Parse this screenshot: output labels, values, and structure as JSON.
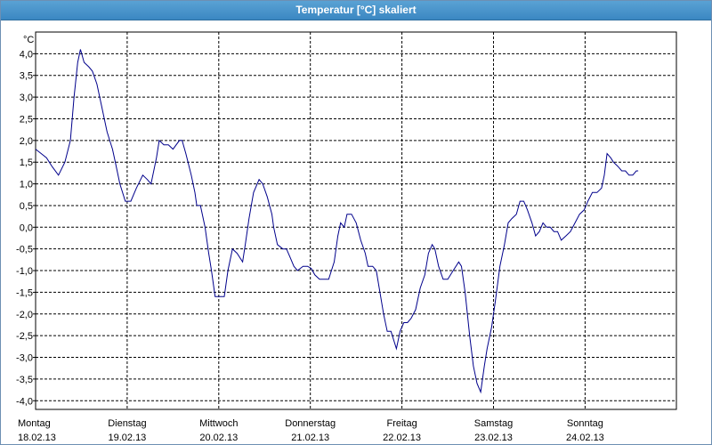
{
  "window": {
    "title": "Temperatur [°C] skaliert"
  },
  "chart_data": {
    "type": "line",
    "title": "Temperatur [°C] skaliert",
    "ylabel": "°C",
    "xlabel": "",
    "ylim": [
      -4.2,
      4.5
    ],
    "xlim": [
      0,
      7
    ],
    "grid": true,
    "y_ticks": [
      4.0,
      3.5,
      3.0,
      2.5,
      2.0,
      1.5,
      1.0,
      0.5,
      0.0,
      -0.5,
      -1.0,
      -1.5,
      -2.0,
      -2.5,
      -3.0,
      -3.5,
      -4.0
    ],
    "y_tick_labels": [
      "4,0",
      "3,5",
      "3,0",
      "2,5",
      "2,0",
      "1,5",
      "1,0",
      "0,5",
      "0,0",
      "-0,5",
      "-1,0",
      "-1,5",
      "-2,0",
      "-2,5",
      "-3,0",
      "-3,5",
      "-4,0"
    ],
    "x_days": [
      {
        "day": "Montag",
        "date": "18.02.13"
      },
      {
        "day": "Dienstag",
        "date": "19.02.13"
      },
      {
        "day": "Mittwoch",
        "date": "20.02.13"
      },
      {
        "day": "Donnerstag",
        "date": "21.02.13"
      },
      {
        "day": "Freitag",
        "date": "22.02.13"
      },
      {
        "day": "Samstag",
        "date": "23.02.13"
      },
      {
        "day": "Sonntag",
        "date": "24.02.13"
      }
    ],
    "series": [
      {
        "color": "#00008b",
        "points": [
          [
            0.0,
            1.8
          ],
          [
            0.06,
            1.7
          ],
          [
            0.12,
            1.6
          ],
          [
            0.18,
            1.4
          ],
          [
            0.25,
            1.2
          ],
          [
            0.32,
            1.5
          ],
          [
            0.38,
            2.0
          ],
          [
            0.42,
            3.0
          ],
          [
            0.46,
            3.8
          ],
          [
            0.49,
            4.1
          ],
          [
            0.53,
            3.8
          ],
          [
            0.58,
            3.7
          ],
          [
            0.62,
            3.6
          ],
          [
            0.67,
            3.3
          ],
          [
            0.72,
            2.8
          ],
          [
            0.78,
            2.2
          ],
          [
            0.84,
            1.8
          ],
          [
            0.88,
            1.4
          ],
          [
            0.92,
            1.0
          ],
          [
            0.98,
            0.6
          ],
          [
            1.04,
            0.6
          ],
          [
            1.1,
            0.9
          ],
          [
            1.17,
            1.2
          ],
          [
            1.22,
            1.1
          ],
          [
            1.26,
            1.0
          ],
          [
            1.32,
            1.6
          ],
          [
            1.35,
            2.0
          ],
          [
            1.4,
            1.9
          ],
          [
            1.45,
            1.9
          ],
          [
            1.5,
            1.8
          ],
          [
            1.57,
            2.0
          ],
          [
            1.6,
            2.0
          ],
          [
            1.64,
            1.7
          ],
          [
            1.7,
            1.2
          ],
          [
            1.74,
            0.8
          ],
          [
            1.76,
            0.5
          ],
          [
            1.8,
            0.5
          ],
          [
            1.85,
            0.0
          ],
          [
            1.89,
            -0.6
          ],
          [
            1.92,
            -1.0
          ],
          [
            1.96,
            -1.6
          ],
          [
            2.0,
            -1.6
          ],
          [
            2.06,
            -1.6
          ],
          [
            2.1,
            -1.0
          ],
          [
            2.15,
            -0.5
          ],
          [
            2.2,
            -0.6
          ],
          [
            2.26,
            -0.8
          ],
          [
            2.29,
            -0.4
          ],
          [
            2.33,
            0.2
          ],
          [
            2.38,
            0.8
          ],
          [
            2.44,
            1.1
          ],
          [
            2.48,
            1.0
          ],
          [
            2.53,
            0.7
          ],
          [
            2.58,
            0.3
          ],
          [
            2.6,
            0.0
          ],
          [
            2.64,
            -0.4
          ],
          [
            2.7,
            -0.5
          ],
          [
            2.74,
            -0.5
          ],
          [
            2.78,
            -0.7
          ],
          [
            2.82,
            -0.9
          ],
          [
            2.86,
            -1.0
          ],
          [
            2.92,
            -0.9
          ],
          [
            2.97,
            -0.9
          ],
          [
            3.01,
            -0.95
          ],
          [
            3.05,
            -1.1
          ],
          [
            3.1,
            -1.2
          ],
          [
            3.17,
            -1.2
          ],
          [
            3.2,
            -1.2
          ],
          [
            3.26,
            -0.8
          ],
          [
            3.3,
            -0.2
          ],
          [
            3.33,
            0.1
          ],
          [
            3.37,
            0.0
          ],
          [
            3.4,
            0.3
          ],
          [
            3.45,
            0.3
          ],
          [
            3.5,
            0.1
          ],
          [
            3.55,
            -0.3
          ],
          [
            3.6,
            -0.6
          ],
          [
            3.63,
            -0.9
          ],
          [
            3.68,
            -0.9
          ],
          [
            3.72,
            -1.0
          ],
          [
            3.76,
            -1.5
          ],
          [
            3.8,
            -2.0
          ],
          [
            3.84,
            -2.4
          ],
          [
            3.88,
            -2.4
          ],
          [
            3.94,
            -2.8
          ],
          [
            3.98,
            -2.4
          ],
          [
            4.02,
            -2.2
          ],
          [
            4.06,
            -2.2
          ],
          [
            4.1,
            -2.1
          ],
          [
            4.15,
            -1.9
          ],
          [
            4.2,
            -1.4
          ],
          [
            4.25,
            -1.1
          ],
          [
            4.29,
            -0.6
          ],
          [
            4.33,
            -0.4
          ],
          [
            4.36,
            -0.5
          ],
          [
            4.4,
            -0.9
          ],
          [
            4.45,
            -1.2
          ],
          [
            4.5,
            -1.2
          ],
          [
            4.56,
            -1.0
          ],
          [
            4.62,
            -0.8
          ],
          [
            4.65,
            -0.9
          ],
          [
            4.69,
            -1.5
          ],
          [
            4.74,
            -2.5
          ],
          [
            4.78,
            -3.2
          ],
          [
            4.82,
            -3.6
          ],
          [
            4.86,
            -3.8
          ],
          [
            4.9,
            -3.2
          ],
          [
            4.93,
            -2.8
          ],
          [
            4.98,
            -2.3
          ],
          [
            5.02,
            -1.7
          ],
          [
            5.07,
            -0.9
          ],
          [
            5.12,
            -0.4
          ],
          [
            5.16,
            0.1
          ],
          [
            5.2,
            0.2
          ],
          [
            5.25,
            0.3
          ],
          [
            5.29,
            0.6
          ],
          [
            5.33,
            0.6
          ],
          [
            5.37,
            0.4
          ],
          [
            5.42,
            0.1
          ],
          [
            5.46,
            -0.2
          ],
          [
            5.5,
            -0.1
          ],
          [
            5.54,
            0.1
          ],
          [
            5.58,
            0.0
          ],
          [
            5.62,
            0.0
          ],
          [
            5.66,
            -0.1
          ],
          [
            5.7,
            -0.1
          ],
          [
            5.74,
            -0.3
          ],
          [
            5.79,
            -0.2
          ],
          [
            5.84,
            -0.1
          ],
          [
            5.89,
            0.1
          ],
          [
            5.94,
            0.3
          ],
          [
            5.99,
            0.4
          ],
          [
            6.03,
            0.6
          ],
          [
            6.08,
            0.8
          ],
          [
            6.13,
            0.8
          ],
          [
            6.18,
            0.9
          ],
          [
            6.21,
            1.2
          ],
          [
            6.24,
            1.7
          ],
          [
            6.28,
            1.6
          ],
          [
            6.31,
            1.5
          ],
          [
            6.36,
            1.4
          ],
          [
            6.4,
            1.3
          ],
          [
            6.44,
            1.3
          ],
          [
            6.48,
            1.2
          ],
          [
            6.52,
            1.2
          ],
          [
            6.56,
            1.3
          ],
          [
            6.58,
            1.3
          ]
        ]
      }
    ]
  }
}
